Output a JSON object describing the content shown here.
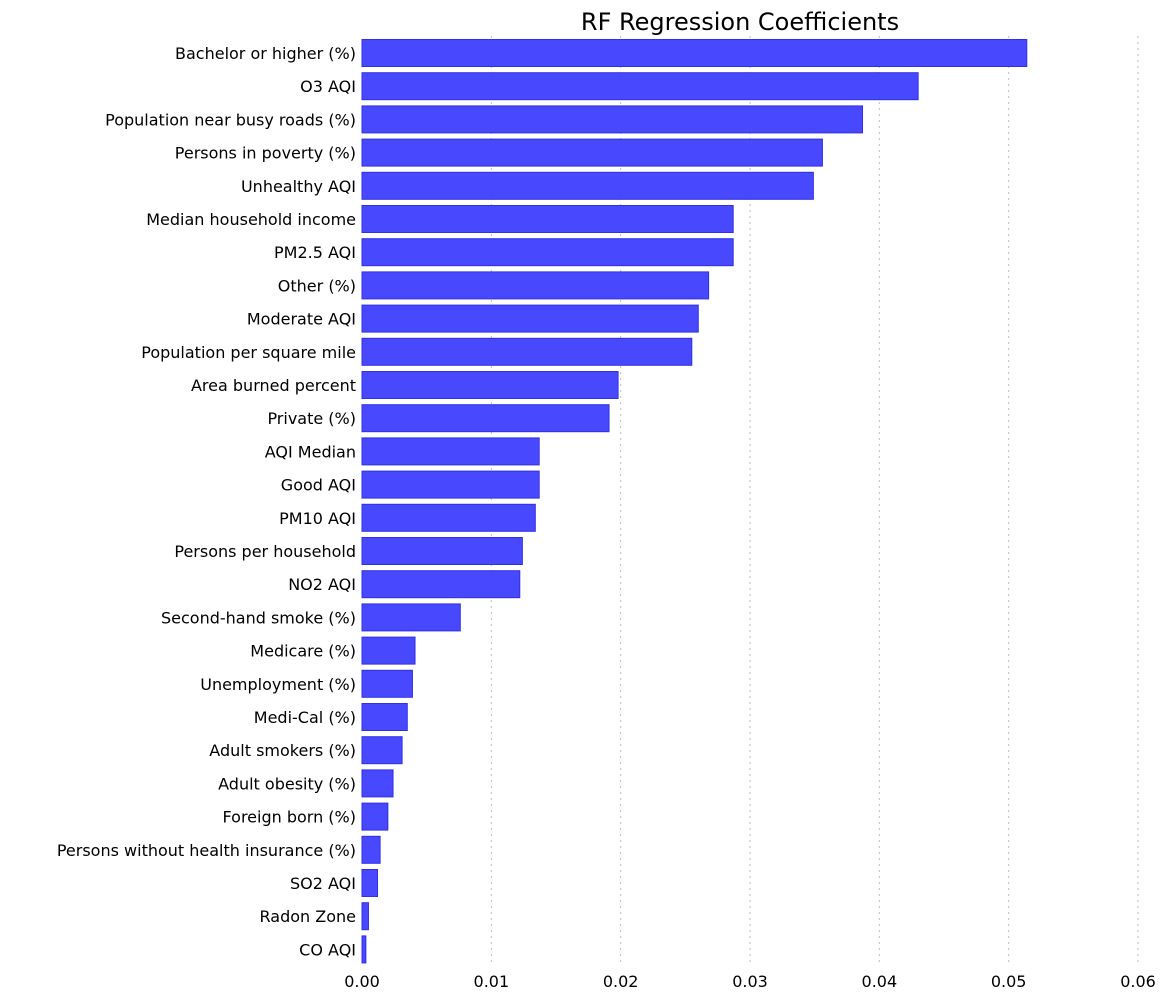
{
  "chart_data": {
    "type": "bar",
    "orientation": "horizontal",
    "title": "RF Regression Coefficients",
    "xlabel": "",
    "ylabel": "",
    "xlim": [
      0.0,
      0.06
    ],
    "x_ticks": [
      "0.00",
      "0.01",
      "0.02",
      "0.03",
      "0.04",
      "0.05",
      "0.06"
    ],
    "grid": "vertical dotted",
    "legend": "none",
    "bar_color": "#4848FF",
    "bar_edge_color": "#3030E6",
    "categories": [
      "Bachelor or higher (%)",
      "O3 AQI",
      "Population near busy roads (%)",
      "Persons in poverty (%)",
      "Unhealthy AQI",
      "Median household income",
      "PM2.5 AQI",
      "Other (%)",
      "Moderate AQI",
      "Population per square mile",
      "Area burned percent",
      "Private (%)",
      "AQI Median",
      "Good AQI",
      "PM10 AQI",
      "Persons per household",
      "NO2 AQI",
      "Second-hand smoke (%)",
      "Medicare (%)",
      "Unemployment (%)",
      "Medi-Cal (%)",
      "Adult smokers (%)",
      "Adult obesity (%)",
      "Foreign born (%)",
      "Persons without health insurance (%)",
      "SO2 AQI",
      "Radon Zone",
      "CO AQI"
    ],
    "values": [
      0.0514,
      0.043,
      0.0387,
      0.0356,
      0.0349,
      0.0287,
      0.0287,
      0.0268,
      0.026,
      0.0255,
      0.0198,
      0.0191,
      0.0137,
      0.0137,
      0.0134,
      0.0124,
      0.0122,
      0.0076,
      0.0041,
      0.0039,
      0.0035,
      0.0031,
      0.0024,
      0.002,
      0.0014,
      0.0012,
      0.0005,
      0.0003
    ]
  }
}
